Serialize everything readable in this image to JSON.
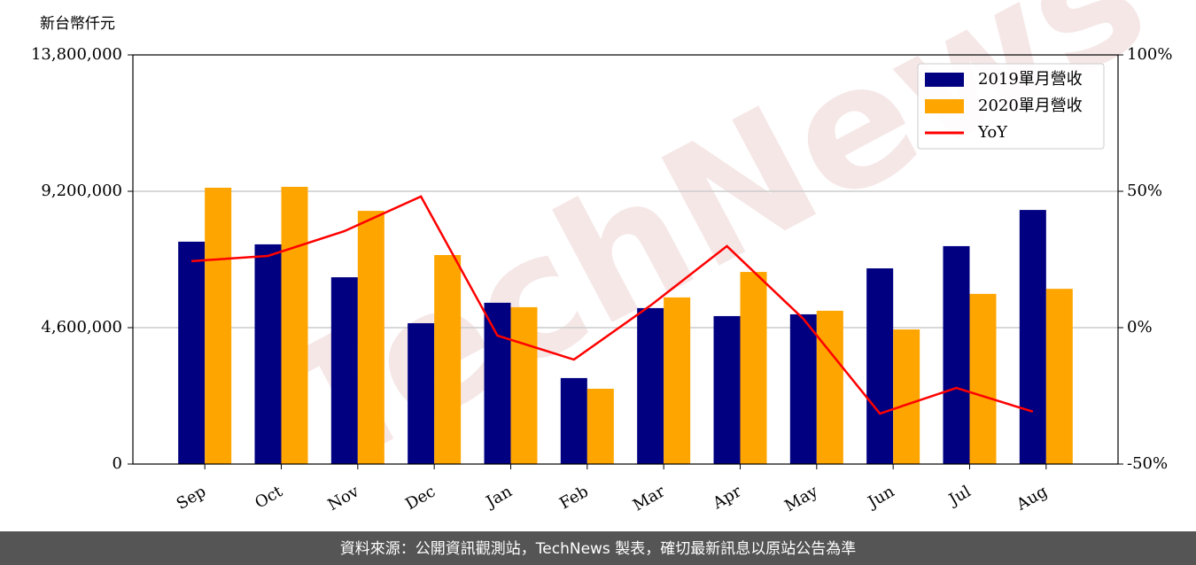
{
  "chart_data": {
    "type": "bar",
    "y_label": "新台幣仟元",
    "watermark": "TechNews",
    "footer": "資料來源：公開資訊觀測站，TechNews 製表，確切最新訊息以原站公告為準",
    "categories": [
      "Sep",
      "Oct",
      "Nov",
      "Dec",
      "Jan",
      "Feb",
      "Mar",
      "Apr",
      "May",
      "Jun",
      "Jul",
      "Aug"
    ],
    "series": [
      {
        "name": "2019單月營收",
        "color": "#000080",
        "type": "bar",
        "values": [
          7500000,
          7410000,
          6300000,
          4750000,
          5440000,
          2900000,
          5260000,
          4990000,
          5050000,
          6600000,
          7350000,
          8570000
        ]
      },
      {
        "name": "2020單月營收",
        "color": "#ffa500",
        "type": "bar",
        "values": [
          9320000,
          9350000,
          8540000,
          7050000,
          5290000,
          2540000,
          5620000,
          6480000,
          5170000,
          4540000,
          5740000,
          5910000
        ]
      },
      {
        "name": "YoY",
        "color": "#ff0000",
        "type": "line",
        "axis": "y2",
        "values": [
          24.4,
          26.3,
          35.4,
          48.1,
          -2.9,
          -11.7,
          8.1,
          29.9,
          3.2,
          -31.5,
          -22.1,
          -30.8
        ]
      }
    ],
    "ylim": [
      0,
      13800000
    ],
    "yticks": [
      0,
      {
        "value": 4600000,
        "label": "4,600,000"
      },
      {
        "value": 9200000,
        "label": "9,200,000"
      },
      {
        "value": 13800000,
        "label": "13,800,000"
      }
    ],
    "y2lim": [
      -50,
      100
    ],
    "y2ticks": [
      {
        "value": -50,
        "label": "-50%"
      },
      {
        "value": 0,
        "label": "0%"
      },
      {
        "value": 50,
        "label": "50%"
      },
      {
        "value": 100,
        "label": "100%"
      }
    ],
    "grid": true,
    "legend": "upper right"
  }
}
